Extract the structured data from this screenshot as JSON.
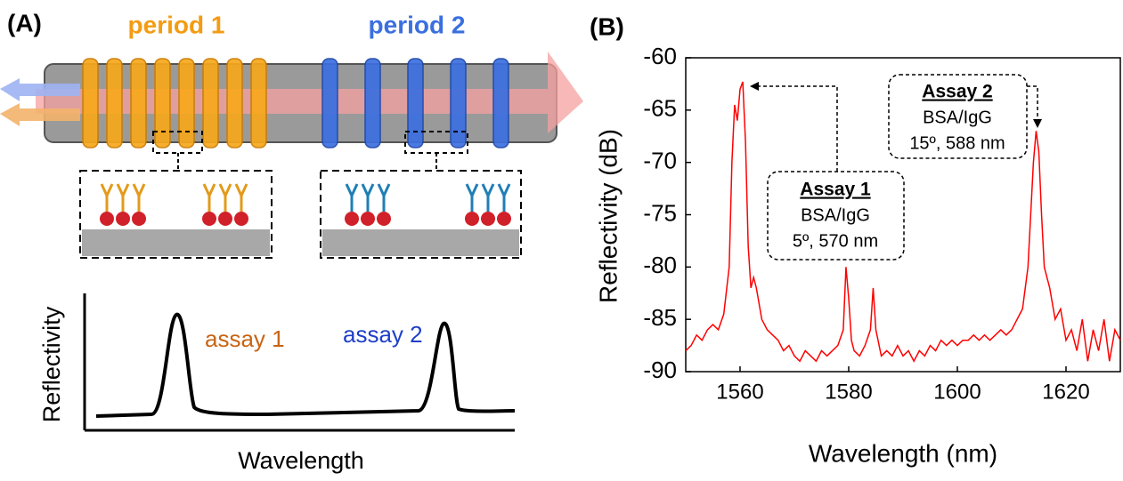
{
  "panel_a": {
    "label": "(A)",
    "period_1": "period 1",
    "period_2": "period 2",
    "assay_1": "assay 1",
    "assay_2": "assay 2",
    "y_axis": "Reflectivity",
    "x_axis": "Wavelength"
  },
  "chart_data": {
    "type": "line",
    "panel_label": "(B)",
    "x_label": "Wavelength (nm)",
    "y_label": "Reflectivity (dB)",
    "xlim": [
      1550,
      1630
    ],
    "xticks": [
      1560,
      1580,
      1600,
      1620
    ],
    "ylim": [
      -90,
      -60
    ],
    "yticks": [
      -90,
      -85,
      -80,
      -75,
      -70,
      -65,
      -60
    ],
    "color": "#ff0000",
    "annotations": [
      {
        "title": "Assay 1",
        "lines": [
          "BSA/IgG",
          "5º, 570 nm"
        ]
      },
      {
        "title": "Assay 2",
        "lines": [
          "BSA/IgG",
          "15º, 588 nm"
        ]
      }
    ],
    "x": [
      1550,
      1551,
      1552,
      1553,
      1554,
      1555,
      1556,
      1557,
      1558,
      1558.5,
      1559,
      1559.5,
      1560,
      1560.5,
      1561,
      1561.5,
      1562,
      1562.5,
      1563,
      1564,
      1565,
      1566,
      1567,
      1568,
      1569,
      1570,
      1571,
      1572,
      1573,
      1574,
      1575,
      1576,
      1577,
      1578,
      1579,
      1579.5,
      1580,
      1580.5,
      1581,
      1582,
      1583,
      1584,
      1584.5,
      1585,
      1586,
      1587,
      1588,
      1589,
      1590,
      1591,
      1592,
      1593,
      1594,
      1595,
      1596,
      1597,
      1598,
      1599,
      1600,
      1601,
      1602,
      1603,
      1604,
      1605,
      1606,
      1607,
      1608,
      1609,
      1610,
      1611,
      1612,
      1613,
      1613.5,
      1614,
      1614.5,
      1615,
      1615.5,
      1616,
      1617,
      1618,
      1619,
      1620,
      1621,
      1622,
      1623,
      1624,
      1625,
      1626,
      1627,
      1628,
      1629,
      1630
    ],
    "values": [
      -88,
      -87.5,
      -86.5,
      -87,
      -86,
      -85.5,
      -86,
      -84.5,
      -80,
      -70,
      -64.5,
      -66,
      -63,
      -62.3,
      -68,
      -78,
      -82,
      -81,
      -82,
      -85,
      -86,
      -86.5,
      -87,
      -88,
      -87.5,
      -88.5,
      -89,
      -88,
      -88.5,
      -89,
      -88,
      -88.5,
      -88,
      -87.5,
      -86,
      -80,
      -83,
      -87,
      -88,
      -88.5,
      -87.5,
      -86,
      -82,
      -86,
      -88.5,
      -88,
      -88.5,
      -87.5,
      -88.5,
      -88,
      -89,
      -88,
      -88.5,
      -87.5,
      -88,
      -87,
      -87.5,
      -87,
      -87.5,
      -87,
      -87,
      -86.5,
      -87,
      -86.5,
      -87,
      -86.5,
      -86,
      -86.5,
      -86,
      -85,
      -84,
      -80,
      -75,
      -70,
      -67,
      -69,
      -75,
      -80,
      -82,
      -85,
      -84,
      -87,
      -86,
      -88,
      -85,
      -89,
      -86,
      -88,
      -85,
      -89,
      -86,
      -87
    ]
  }
}
